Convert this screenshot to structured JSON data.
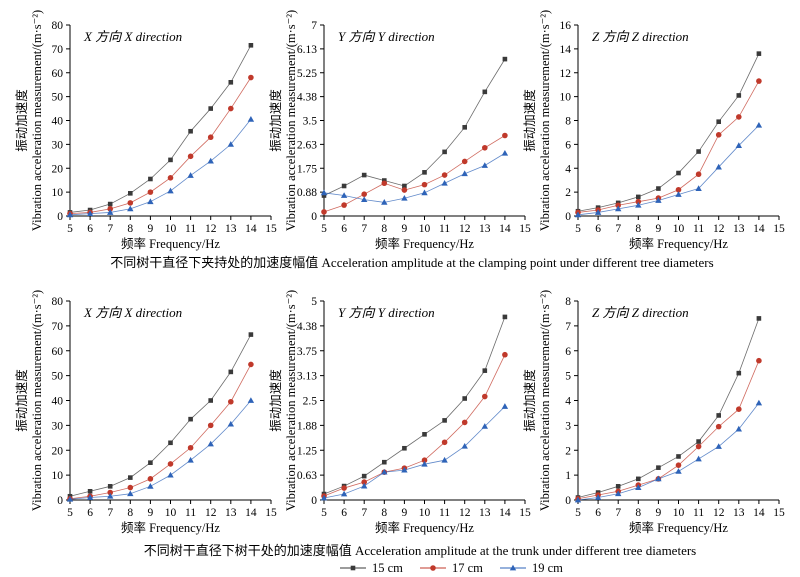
{
  "caption_top": "不同树干直径下夹持处的加速度幅值 Acceleration amplitude at the clamping point under different tree diameters",
  "caption_bottom": "不同树干直径下树干处的加速度幅值 Acceleration amplitude at the trunk under different tree diameters",
  "legend": [
    {
      "name": "15 cm",
      "color": "#3a3a3a",
      "marker": "square"
    },
    {
      "name": "17 cm",
      "color": "#c0392b",
      "marker": "circle"
    },
    {
      "name": "19 cm",
      "color": "#2e63b8",
      "marker": "triangle"
    }
  ],
  "chart_data": [
    {
      "type": "line",
      "title": "X 方向 X direction",
      "xlabel": "频率 Frequency/Hz",
      "ylabel": "振动加速度 Vibration acceleration measurement/(m·s⁻²)",
      "xlim": [
        5,
        15
      ],
      "ylim": [
        0,
        80
      ],
      "x": [
        5,
        6,
        7,
        8,
        9,
        10,
        11,
        12,
        13,
        14
      ],
      "series": [
        {
          "name": "15 cm",
          "values": [
            1.5,
            2.5,
            5.0,
            9.5,
            15.5,
            23.5,
            35.5,
            45.0,
            56.0,
            71.5
          ]
        },
        {
          "name": "17 cm",
          "values": [
            1.0,
            1.5,
            3.0,
            5.5,
            10.0,
            16.0,
            25.0,
            33.0,
            45.0,
            58.0
          ]
        },
        {
          "name": "19 cm",
          "values": [
            0.5,
            1.0,
            1.5,
            3.0,
            6.0,
            10.5,
            17.0,
            23.0,
            30.0,
            40.5
          ]
        }
      ]
    },
    {
      "type": "line",
      "title": "Y 方向 Y direction",
      "xlabel": "频率 Frequency/Hz",
      "ylabel": "振动加速度 Vibration acceleration measurement/(m·s⁻²)",
      "xlim": [
        5,
        15
      ],
      "ylim": [
        0,
        7
      ],
      "x": [
        5,
        6,
        7,
        8,
        9,
        10,
        11,
        12,
        13,
        14
      ],
      "series": [
        {
          "name": "15 cm",
          "values": [
            0.75,
            1.1,
            1.5,
            1.3,
            1.1,
            1.6,
            2.35,
            3.25,
            4.55,
            5.75
          ]
        },
        {
          "name": "17 cm",
          "values": [
            0.15,
            0.4,
            0.8,
            1.2,
            0.95,
            1.15,
            1.5,
            2.0,
            2.5,
            2.95
          ]
        },
        {
          "name": "19 cm",
          "values": [
            0.85,
            0.75,
            0.6,
            0.5,
            0.65,
            0.85,
            1.2,
            1.55,
            1.85,
            2.3
          ]
        }
      ]
    },
    {
      "type": "line",
      "title": "Z 方向 Z direction",
      "xlabel": "频率 Frequency/Hz",
      "ylabel": "振动加速度 Vibration acceleration measurement/(m·s⁻²)",
      "xlim": [
        5,
        15
      ],
      "ylim": [
        0,
        16
      ],
      "x": [
        5,
        6,
        7,
        8,
        9,
        10,
        11,
        12,
        13,
        14
      ],
      "series": [
        {
          "name": "15 cm",
          "values": [
            0.4,
            0.7,
            1.1,
            1.6,
            2.3,
            3.6,
            5.4,
            7.9,
            10.1,
            13.6
          ]
        },
        {
          "name": "17 cm",
          "values": [
            0.3,
            0.5,
            0.9,
            1.2,
            1.5,
            2.2,
            3.5,
            6.8,
            8.3,
            11.3
          ]
        },
        {
          "name": "19 cm",
          "values": [
            0.1,
            0.3,
            0.6,
            0.9,
            1.3,
            1.8,
            2.3,
            4.1,
            5.9,
            7.6
          ]
        }
      ]
    },
    {
      "type": "line",
      "title": "X 方向 X direction",
      "xlabel": "频率 Frequency/Hz",
      "ylabel": "振动加速度 Vibration acceleration measurement/(m·s⁻²)",
      "xlim": [
        5,
        15
      ],
      "ylim": [
        0,
        80
      ],
      "x": [
        5,
        6,
        7,
        8,
        9,
        10,
        11,
        12,
        13,
        14
      ],
      "series": [
        {
          "name": "15 cm",
          "values": [
            1.5,
            3.5,
            5.5,
            9.0,
            15.0,
            23.0,
            32.5,
            40.0,
            51.5,
            66.5
          ]
        },
        {
          "name": "17 cm",
          "values": [
            0.5,
            1.5,
            3.0,
            5.0,
            8.5,
            14.5,
            21.0,
            30.0,
            39.5,
            54.5
          ]
        },
        {
          "name": "19 cm",
          "values": [
            0.3,
            1.0,
            1.5,
            2.5,
            5.5,
            10.0,
            16.0,
            22.5,
            30.5,
            40.0
          ]
        }
      ]
    },
    {
      "type": "line",
      "title": "Y 方向 Y direction",
      "xlabel": "频率 Frequency/Hz",
      "ylabel": "振动加速度 Vibration acceleration measurement/(m·s⁻²)",
      "xlim": [
        5,
        15
      ],
      "ylim": [
        0,
        5
      ],
      "x": [
        5,
        6,
        7,
        8,
        9,
        10,
        11,
        12,
        13,
        14
      ],
      "series": [
        {
          "name": "15 cm",
          "values": [
            0.15,
            0.35,
            0.6,
            0.95,
            1.3,
            1.65,
            2.0,
            2.55,
            3.25,
            4.6
          ]
        },
        {
          "name": "17 cm",
          "values": [
            0.1,
            0.3,
            0.45,
            0.7,
            0.8,
            1.0,
            1.45,
            1.95,
            2.6,
            3.65
          ]
        },
        {
          "name": "19 cm",
          "values": [
            0.05,
            0.15,
            0.35,
            0.7,
            0.75,
            0.9,
            1.0,
            1.35,
            1.85,
            2.35
          ]
        }
      ]
    },
    {
      "type": "line",
      "title": "Z 方向 Z direction",
      "xlabel": "频率 Frequency/Hz",
      "ylabel": "振动加速度 Vibration acceleration measurement/(m·s⁻²)",
      "xlim": [
        5,
        15
      ],
      "ylim": [
        0,
        8
      ],
      "x": [
        5,
        6,
        7,
        8,
        9,
        10,
        11,
        12,
        13,
        14
      ],
      "series": [
        {
          "name": "15 cm",
          "values": [
            0.1,
            0.3,
            0.55,
            0.85,
            1.3,
            1.75,
            2.35,
            3.4,
            5.1,
            7.3
          ]
        },
        {
          "name": "17 cm",
          "values": [
            0.05,
            0.2,
            0.35,
            0.6,
            0.85,
            1.4,
            2.15,
            2.95,
            3.65,
            5.6
          ]
        },
        {
          "name": "19 cm",
          "values": [
            0.0,
            0.1,
            0.25,
            0.5,
            0.85,
            1.15,
            1.65,
            2.15,
            2.85,
            3.9
          ]
        }
      ]
    }
  ]
}
